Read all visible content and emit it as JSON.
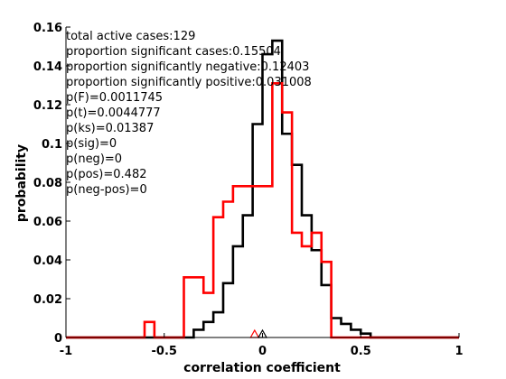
{
  "chart_data": {
    "type": "histogram-step",
    "xlabel": "correlation coefficient",
    "ylabel": "probability",
    "xlim": [
      -1,
      1
    ],
    "ylim": [
      0,
      0.16
    ],
    "xticks": [
      "-1",
      "-0.5",
      "0",
      "0.5",
      "1"
    ],
    "xtick_values": [
      -1,
      -0.5,
      0,
      0.5,
      1
    ],
    "yticks": [
      "0",
      "0.02",
      "0.04",
      "0.06",
      "0.08",
      "0.1",
      "0.12",
      "0.14",
      "0.16"
    ],
    "ytick_values": [
      0,
      0.02,
      0.04,
      0.06,
      0.08,
      0.1,
      0.12,
      0.14,
      0.16
    ],
    "grid": false,
    "annotations": [
      "total active cases:129",
      "proportion significant cases:0.15504",
      "proportion significantly negative:0.12403",
      "proportion significantly positive:0.031008",
      "p(F)=0.0011745",
      "p(t)=0.0044777",
      "p(ks)=0.01387",
      "p(sig)=0",
      "p(neg)=0",
      "p(pos)=0.482",
      "p(neg-pos)=0"
    ],
    "series": [
      {
        "color": "#000000",
        "edges": [
          -1.0,
          -0.35,
          -0.3,
          -0.25,
          -0.2,
          -0.15,
          -0.1,
          -0.05,
          0.0,
          0.05,
          0.1,
          0.15,
          0.2,
          0.25,
          0.3,
          0.35,
          0.4,
          0.45,
          0.5,
          0.55,
          1.0
        ],
        "values": [
          0.0,
          0.004,
          0.008,
          0.013,
          0.028,
          0.047,
          0.063,
          0.11,
          0.146,
          0.153,
          0.105,
          0.089,
          0.063,
          0.045,
          0.027,
          0.01,
          0.007,
          0.004,
          0.002,
          0.0
        ]
      },
      {
        "color": "#ff0000",
        "edges": [
          -1.0,
          -0.6,
          -0.55,
          -0.4,
          -0.3,
          -0.25,
          -0.2,
          -0.15,
          -0.05,
          0.0,
          0.05,
          0.1,
          0.15,
          0.2,
          0.25,
          0.3,
          0.35,
          1.0
        ],
        "values": [
          0.0,
          0.008,
          0.0,
          0.031,
          0.023,
          0.062,
          0.07,
          0.078,
          0.078,
          0.078,
          0.131,
          0.116,
          0.054,
          0.047,
          0.054,
          0.039,
          0.0
        ]
      }
    ],
    "markers": [
      {
        "x": -0.04,
        "color": "#ff0000",
        "shape": "triangle"
      },
      {
        "x": 0.0,
        "color": "#000000",
        "shape": "triangle"
      }
    ]
  }
}
